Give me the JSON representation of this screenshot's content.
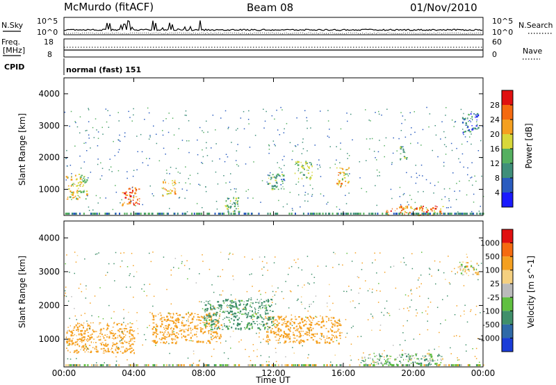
{
  "header": {
    "station": "McMurdo (fitACF)",
    "beam": "Beam 08",
    "date": "01/Nov/2010"
  },
  "top_panels": {
    "nsky_label": "N.Sky",
    "nsky_ticks": [
      "10^5",
      "10^0"
    ],
    "nsearch_label": "N.Search",
    "nsearch_ticks": [
      "10^5",
      "10^0"
    ],
    "freq_label_1": "Freq.",
    "freq_label_2": "[MHz]",
    "freq_ticks": [
      "18",
      "8"
    ],
    "nave_label": "Nave",
    "nave_ticks": [
      "60",
      "0"
    ],
    "cpid_label": "CPID",
    "cpid_value": "normal (fast) 151"
  },
  "chart_data": [
    {
      "type": "heatmap",
      "ylabel": "Slant Range [km]",
      "ylim": [
        180,
        4500
      ],
      "xlim": [
        0,
        24
      ],
      "yticks": [
        "1000",
        "2000",
        "3000",
        "4000"
      ],
      "colorbar": {
        "label": "Power [dB]",
        "ticks": [
          "4",
          "8",
          "12",
          "16",
          "20",
          "24",
          "28"
        ],
        "colors": [
          "#1a1aff",
          "#2a5cbf",
          "#3f8f7a",
          "#55b060",
          "#d8d83a",
          "#f5a020",
          "#f56a10",
          "#e01010"
        ]
      },
      "echo_regions": [
        {
          "t0": 0.1,
          "t1": 1.3,
          "r0": 700,
          "r1": 1500,
          "value": 18
        },
        {
          "t0": 3.3,
          "t1": 4.3,
          "r0": 500,
          "r1": 1100,
          "value": 26
        },
        {
          "t0": 5.6,
          "t1": 6.4,
          "r0": 800,
          "r1": 1300,
          "value": 20
        },
        {
          "t0": 9.2,
          "t1": 10.0,
          "r0": 300,
          "r1": 800,
          "value": 14
        },
        {
          "t0": 11.6,
          "t1": 12.6,
          "r0": 1000,
          "r1": 1500,
          "value": 12
        },
        {
          "t0": 13.2,
          "t1": 14.2,
          "r0": 1300,
          "r1": 1900,
          "value": 14
        },
        {
          "t0": 15.6,
          "t1": 16.3,
          "r0": 1100,
          "r1": 1700,
          "value": 20
        },
        {
          "t0": 18.4,
          "t1": 21.7,
          "r0": 200,
          "r1": 500,
          "value": 24
        },
        {
          "t0": 19.2,
          "t1": 19.6,
          "r0": 1900,
          "r1": 2400,
          "value": 12
        },
        {
          "t0": 22.8,
          "t1": 23.7,
          "r0": 2800,
          "r1": 3400,
          "value": 8
        }
      ]
    },
    {
      "type": "heatmap",
      "xlabel": "Time UT",
      "ylabel": "Slant Range [km]",
      "ylim": [
        180,
        4500
      ],
      "xlim": [
        0,
        24
      ],
      "yticks": [
        "1000",
        "2000",
        "3000",
        "4000"
      ],
      "xticks": [
        "00:00",
        "04:00",
        "08:00",
        "12:00",
        "16:00",
        "20:00",
        "00:00"
      ],
      "colorbar": {
        "label": "Velocity [m s^-1]",
        "ticks": [
          "1000",
          "500",
          "100",
          "25",
          "-25",
          "-100",
          "-500",
          "-1000"
        ],
        "colors": [
          "#1a3cd8",
          "#2f6aa8",
          "#3f8f6a",
          "#60c040",
          "#bbbbbb",
          "#f5d080",
          "#f5a020",
          "#f56a10",
          "#e01010"
        ]
      },
      "echo_regions": [
        {
          "t0": 0.1,
          "t1": 4.0,
          "r0": 600,
          "r1": 1500,
          "value": -300
        },
        {
          "t0": 5.0,
          "t1": 9.0,
          "r0": 900,
          "r1": 1800,
          "value": -300
        },
        {
          "t0": 11.5,
          "t1": 15.8,
          "r0": 900,
          "r1": 1700,
          "value": -300
        },
        {
          "t0": 8.0,
          "t1": 12.0,
          "r0": 1300,
          "r1": 2200,
          "value": 200
        },
        {
          "t0": 17.0,
          "t1": 21.7,
          "r0": 250,
          "r1": 600,
          "value": 80
        },
        {
          "t0": 22.5,
          "t1": 23.8,
          "r0": 2900,
          "r1": 3300,
          "value": 0
        }
      ]
    }
  ]
}
